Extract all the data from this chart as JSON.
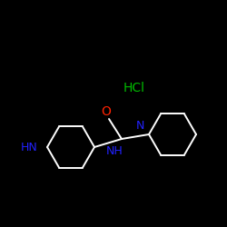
{
  "background": "#000000",
  "hcl_color": "#00bb00",
  "o_color": "#ff2200",
  "n_color": "#2222ff",
  "bond_color": "#ffffff",
  "label_hcl": "HCl",
  "label_o": "O",
  "label_n": "N",
  "label_nh_center": "NH",
  "label_hn_left": "HN",
  "figsize": [
    2.5,
    2.5
  ],
  "dpi": 100
}
